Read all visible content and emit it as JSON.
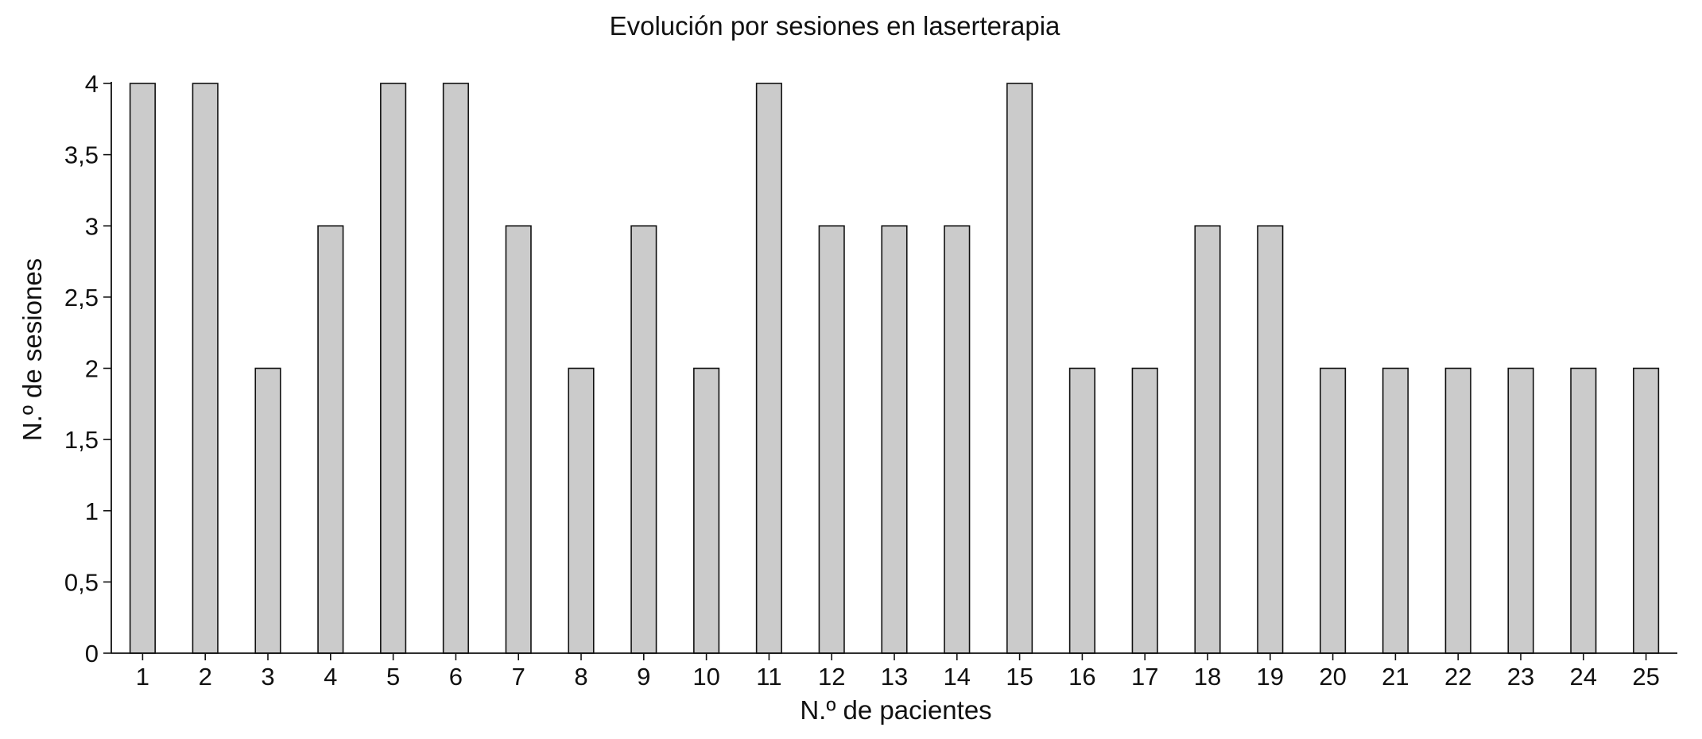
{
  "chart_data": {
    "type": "bar",
    "title": "Evolución por sesiones en laserterapia",
    "xlabel": "N.º de pacientes",
    "ylabel": "N.º de sesiones",
    "categories": [
      "1",
      "2",
      "3",
      "4",
      "5",
      "6",
      "7",
      "8",
      "9",
      "10",
      "11",
      "12",
      "13",
      "14",
      "15",
      "16",
      "17",
      "18",
      "19",
      "20",
      "21",
      "22",
      "23",
      "24",
      "25"
    ],
    "values": [
      4,
      4,
      2,
      3,
      4,
      4,
      3,
      2,
      3,
      2,
      4,
      3,
      3,
      3,
      4,
      2,
      2,
      3,
      3,
      2,
      2,
      2,
      2,
      2,
      2
    ],
    "ylim": [
      0,
      4
    ],
    "yticks": [
      0,
      0.5,
      1,
      1.5,
      2,
      2.5,
      3,
      3.5,
      4
    ],
    "ytick_labels": [
      "0",
      "0,5",
      "1",
      "1,5",
      "2",
      "2,5",
      "3",
      "3,5",
      "4"
    ],
    "grid": false,
    "legend": "none",
    "colors": {
      "bar_fill": "#cbcbcb",
      "bar_stroke": "#111111",
      "axis": "#111111",
      "background": "#ffffff"
    }
  }
}
